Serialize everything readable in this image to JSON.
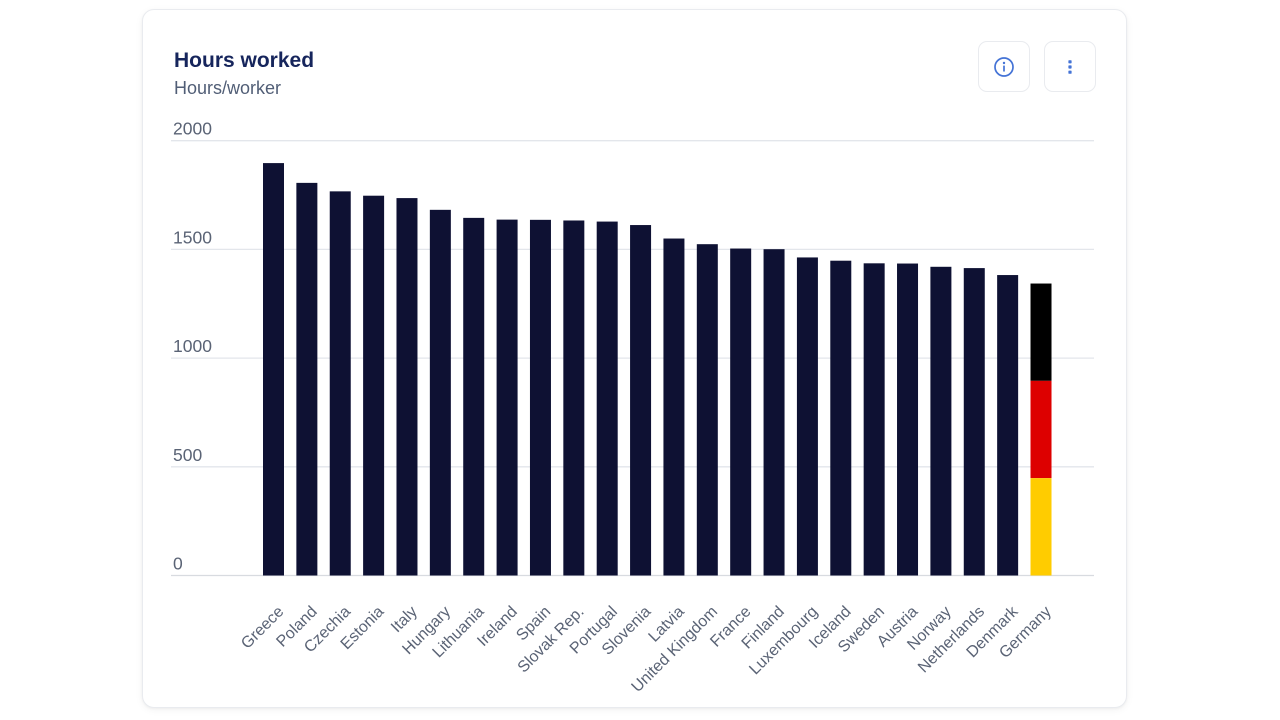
{
  "card": {
    "title": "Hours worked",
    "subtitle": "Hours/worker",
    "toolbar": {
      "icons": [
        "info-circle-icon",
        "kebab-menu-icon"
      ],
      "icon_color": "#4473d6"
    }
  },
  "colors": {
    "bar": "#0e1133",
    "gridline": "#e3e6eb",
    "zero_line": "#d8dbe0",
    "axis_text": "#5a6375",
    "title_text": "#16255c",
    "subtitle_text": "#515e76",
    "card_border": "#e9ebef"
  },
  "chart_data": {
    "type": "bar",
    "title": "Hours worked",
    "subtitle": "Hours/worker",
    "ylabel": "Hours/worker",
    "xlabel": "",
    "ylim": [
      0,
      2000
    ],
    "yticks": [
      0,
      500,
      1000,
      1500,
      2000
    ],
    "grid": "horizontal",
    "legend": "none",
    "categories": [
      "Greece",
      "Poland",
      "Czechia",
      "Estonia",
      "Italy",
      "Hungary",
      "Lithuania",
      "Ireland",
      "Spain",
      "Slovak Rep.",
      "Portugal",
      "Slovenia",
      "Latvia",
      "United Kingdom",
      "France",
      "Finland",
      "Luxembourg",
      "Iceland",
      "Sweden",
      "Austria",
      "Norway",
      "Netherlands",
      "Denmark",
      "Germany"
    ],
    "values": [
      1897,
      1806,
      1767,
      1747,
      1736,
      1682,
      1645,
      1637,
      1636,
      1633,
      1628,
      1612,
      1550,
      1524,
      1504,
      1501,
      1463,
      1448,
      1436,
      1435,
      1420,
      1414,
      1382,
      1343
    ],
    "bar_color": "#0e1133",
    "highlight": {
      "category": "Germany",
      "style": "german-flag-stacked",
      "segments_top_to_bottom": [
        {
          "name": "black",
          "color": "#000000",
          "fraction": 0.3333
        },
        {
          "name": "red",
          "color": "#dd0000",
          "fraction": 0.3333
        },
        {
          "name": "gold",
          "color": "#ffcc00",
          "fraction": 0.3334
        }
      ]
    }
  }
}
